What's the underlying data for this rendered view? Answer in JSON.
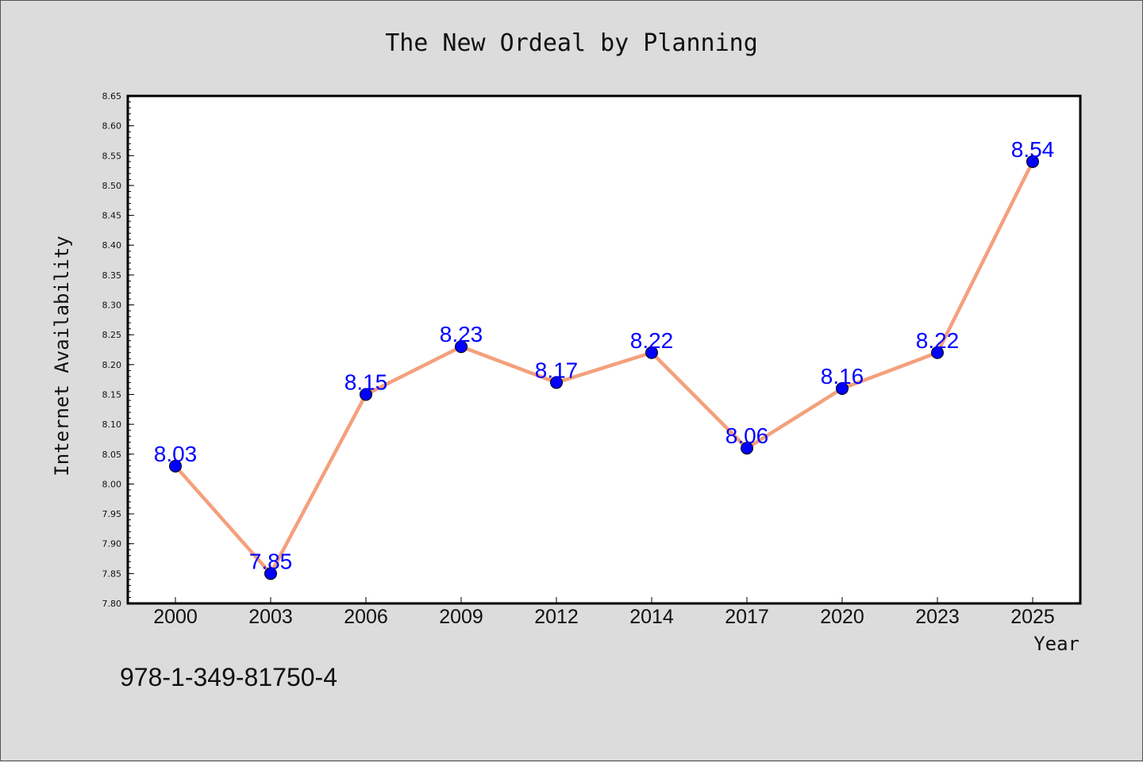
{
  "chart_data": {
    "type": "line",
    "title": "The New Ordeal by Planning",
    "xlabel": "Year",
    "ylabel": "Internet Availability",
    "categories": [
      "2000",
      "2003",
      "2006",
      "2009",
      "2012",
      "2014",
      "2017",
      "2020",
      "2023",
      "2025"
    ],
    "series": [
      {
        "values": [
          8.03,
          7.85,
          8.15,
          8.23,
          8.17,
          8.22,
          8.06,
          8.16,
          8.22,
          8.54
        ],
        "line_color": "#f4a07c",
        "marker_color": "#0000ff",
        "label_color": "#0000ff"
      }
    ],
    "data_labels": [
      "8.03",
      "7.85",
      "8.15",
      "8.23",
      "8.17",
      "8.22",
      "8.06",
      "8.16",
      "8.22",
      "8.54"
    ],
    "ylim": [
      7.8,
      8.65
    ],
    "yticks": [
      "7.80",
      "7.85",
      "7.90",
      "7.95",
      "8.00",
      "8.05",
      "8.10",
      "8.15",
      "8.20",
      "8.25",
      "8.30",
      "8.35",
      "8.40",
      "8.45",
      "8.50",
      "8.55",
      "8.60",
      "8.65"
    ],
    "grid": false,
    "legend": "none",
    "background_color": "#dcdcdc",
    "plot_background_color": "#ffffff"
  },
  "footer_text": "978-1-349-81750-4"
}
